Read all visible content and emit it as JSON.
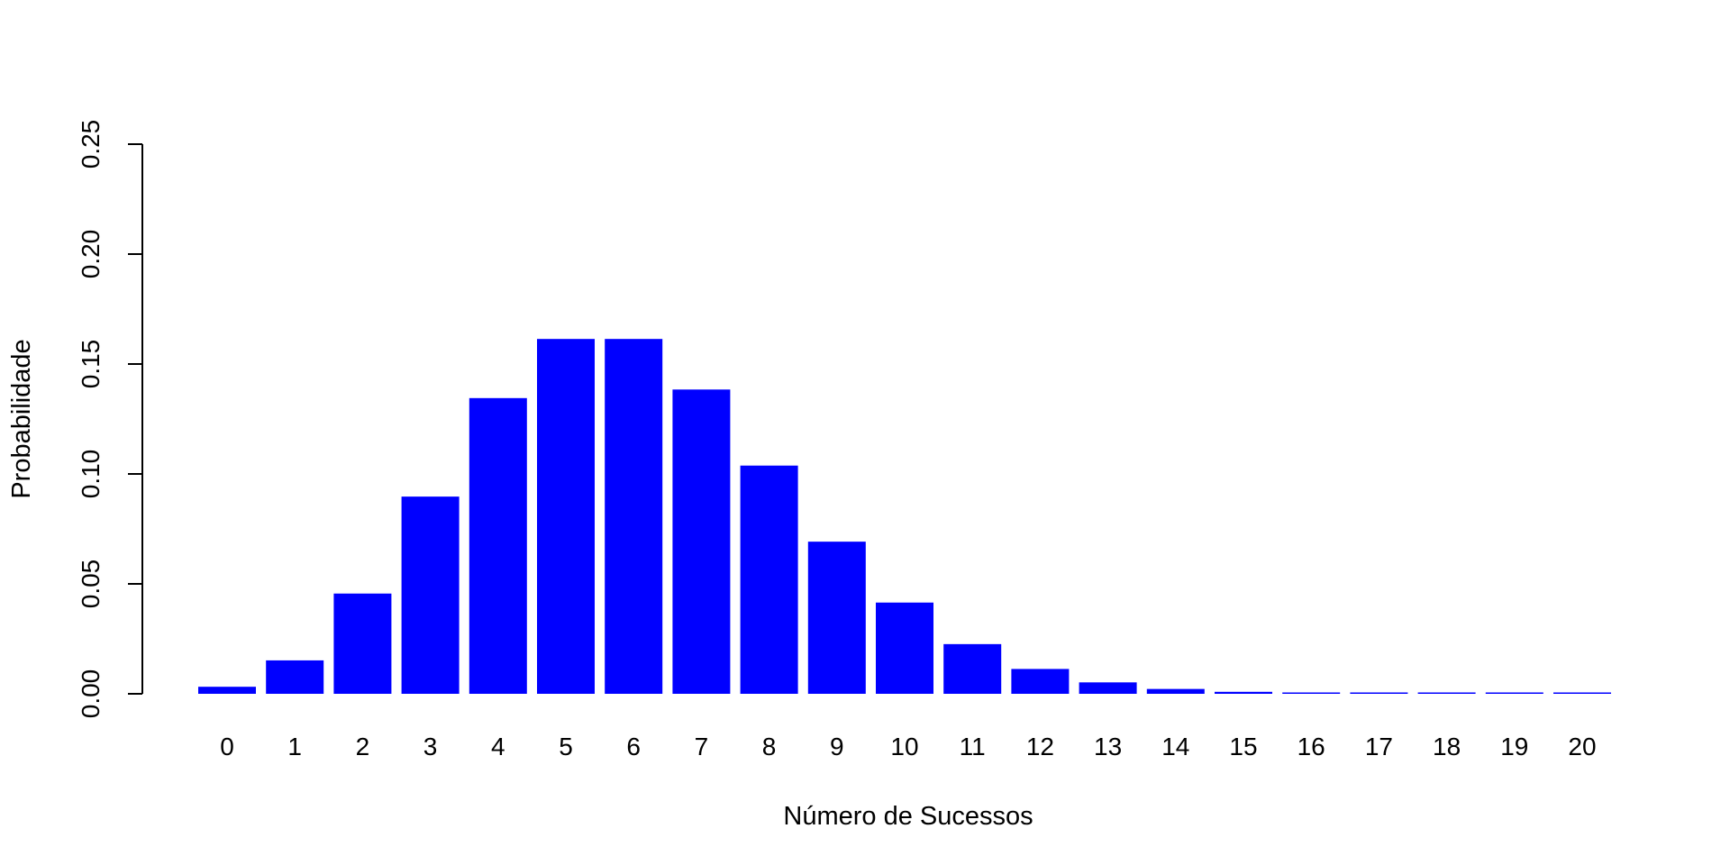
{
  "chart_data": {
    "type": "bar",
    "title": "",
    "xlabel": "Número de Sucessos",
    "ylabel": "Probabilidade",
    "categories": [
      "0",
      "1",
      "2",
      "3",
      "4",
      "5",
      "6",
      "7",
      "8",
      "9",
      "10",
      "11",
      "12",
      "13",
      "14",
      "15",
      "16",
      "17",
      "18",
      "19",
      "20"
    ],
    "values": [
      0.0032,
      0.0152,
      0.0456,
      0.0897,
      0.1345,
      0.1614,
      0.1614,
      0.1384,
      0.1038,
      0.0692,
      0.0415,
      0.0226,
      0.0113,
      0.0052,
      0.0022,
      0.0009,
      0.0003,
      0.0001,
      3e-05,
      1e-05,
      2e-06
    ],
    "ylim": [
      0,
      0.25
    ],
    "yticks": [
      "0.00",
      "0.05",
      "0.10",
      "0.15",
      "0.20",
      "0.25"
    ],
    "bar_color": "#0000ff",
    "grid": false,
    "legend": "none"
  }
}
